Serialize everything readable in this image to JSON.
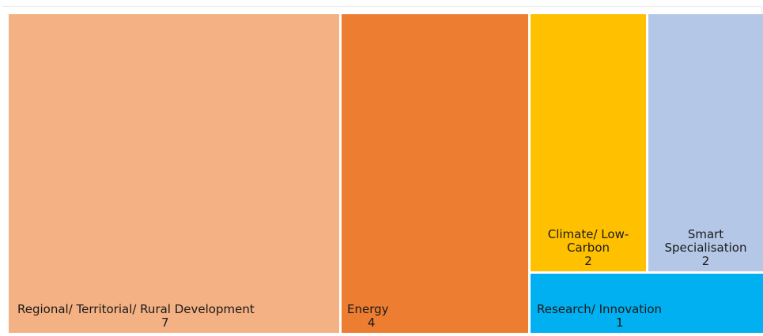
{
  "chart_data": {
    "type": "treemap",
    "title": "",
    "items": [
      {
        "name": "Regional/ Territorial/ Rural Development",
        "value": 7,
        "color": "#F4B183"
      },
      {
        "name": "Energy",
        "value": 4,
        "color": "#ED7D31"
      },
      {
        "name": "Climate/ Low-Carbon",
        "value": 2,
        "color": "#FFC000"
      },
      {
        "name": "Smart Specialisation",
        "value": 2,
        "color": "#B4C7E7"
      },
      {
        "name": "Research/ Innovation",
        "value": 1,
        "color": "#00B0F0"
      }
    ]
  }
}
